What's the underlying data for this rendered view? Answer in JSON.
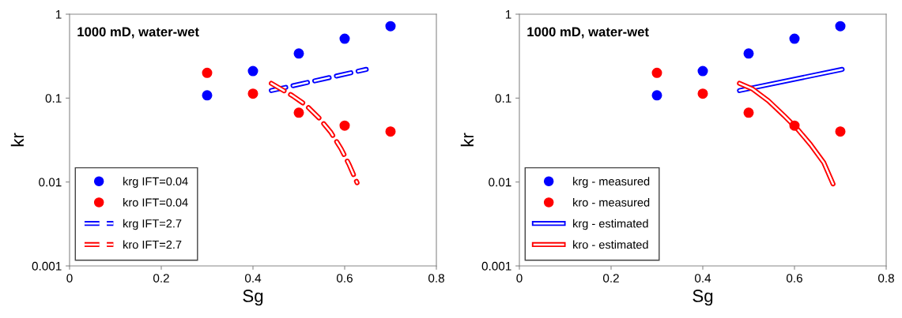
{
  "chart_data": [
    {
      "type": "scatter",
      "title": "1000 mD, water-wet",
      "xlabel": "Sg",
      "ylabel": "kr",
      "log": "y",
      "xlim": [
        0,
        0.8
      ],
      "xticks": [
        0,
        0.2,
        0.4,
        0.6,
        0.8
      ],
      "ylim": [
        0.001,
        1
      ],
      "yticks": [
        0.001,
        0.01,
        0.1,
        1
      ],
      "grid": false,
      "legend": "bottom left",
      "x": [
        0.3,
        0.4,
        0.5,
        0.6,
        0.7
      ],
      "series": [
        {
          "name": "krg IFT=0.04",
          "color": "#0000ff",
          "marker": "circle",
          "values": [
            0.108,
            0.21,
            0.34,
            0.51,
            0.72
          ]
        },
        {
          "name": "kro IFT=0.04",
          "color": "#ff0000",
          "marker": "circle",
          "values": [
            0.2,
            0.113,
            0.067,
            0.047,
            0.04
          ]
        },
        {
          "name": "krg IFT=2.7",
          "type": "line",
          "line_style": "dashed",
          "color": "#0000ff",
          "x": [
            0.44,
            0.647
          ],
          "values": [
            0.123,
            0.22
          ]
        },
        {
          "name": "kro IFT=2.7",
          "type": "line",
          "line_style": "dashed",
          "color": "#ff0000",
          "x": [
            0.44,
            0.486,
            0.515,
            0.544,
            0.57,
            0.592,
            0.61,
            0.627
          ],
          "values": [
            0.15,
            0.107,
            0.083,
            0.058,
            0.039,
            0.025,
            0.016,
            0.0098
          ]
        }
      ]
    },
    {
      "type": "scatter",
      "title": "1000 mD, water-wet",
      "xlabel": "Sg",
      "ylabel": "kr",
      "log": "y",
      "xlim": [
        0,
        0.8
      ],
      "xticks": [
        0,
        0.2,
        0.4,
        0.6,
        0.8
      ],
      "ylim": [
        0.001,
        1
      ],
      "yticks": [
        0.001,
        0.01,
        0.1,
        1
      ],
      "grid": false,
      "legend": "bottom left",
      "x": [
        0.3,
        0.4,
        0.5,
        0.6,
        0.7
      ],
      "series": [
        {
          "name": "krg - measured",
          "color": "#0000ff",
          "marker": "circle",
          "values": [
            0.108,
            0.21,
            0.34,
            0.51,
            0.72
          ]
        },
        {
          "name": "kro - measured",
          "color": "#ff0000",
          "marker": "circle",
          "values": [
            0.2,
            0.113,
            0.067,
            0.047,
            0.04
          ]
        },
        {
          "name": "krg - estimated",
          "type": "line",
          "line_style": "solid",
          "color": "#0000ff",
          "x": [
            0.48,
            0.704
          ],
          "values": [
            0.123,
            0.22
          ]
        },
        {
          "name": "kro - estimated",
          "type": "line",
          "line_style": "solid",
          "color": "#ff0000",
          "x": [
            0.48,
            0.509,
            0.543,
            0.577,
            0.606,
            0.635,
            0.664,
            0.684
          ],
          "values": [
            0.15,
            0.128,
            0.093,
            0.062,
            0.043,
            0.028,
            0.017,
            0.0095
          ]
        }
      ]
    }
  ]
}
